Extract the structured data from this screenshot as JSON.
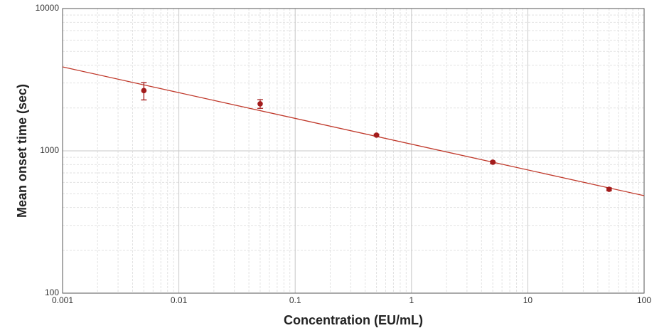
{
  "chart_data": {
    "type": "scatter",
    "x_label": "Concentration (EU/mL)",
    "y_label": "Mean onset time (sec)",
    "log_x": true,
    "log_y": true,
    "grid": true,
    "xlim": [
      0.001,
      100
    ],
    "ylim": [
      100,
      10000
    ],
    "xticks": [
      0.001,
      0.01,
      0.1,
      1,
      10,
      100
    ],
    "yticks": [
      100,
      1000,
      10000
    ],
    "series": [
      {
        "color": "#a31c1c",
        "x": [
          0.005,
          0.05,
          0.5,
          5,
          50
        ],
        "values": [
          2650,
          2140,
          1290,
          832,
          537
        ],
        "yerr": [
          370,
          150,
          20,
          15,
          12
        ]
      }
    ],
    "fit_line": {
      "color": "#c0392b",
      "x": [
        0.001,
        100
      ],
      "values": [
        3890,
        484
      ]
    }
  }
}
